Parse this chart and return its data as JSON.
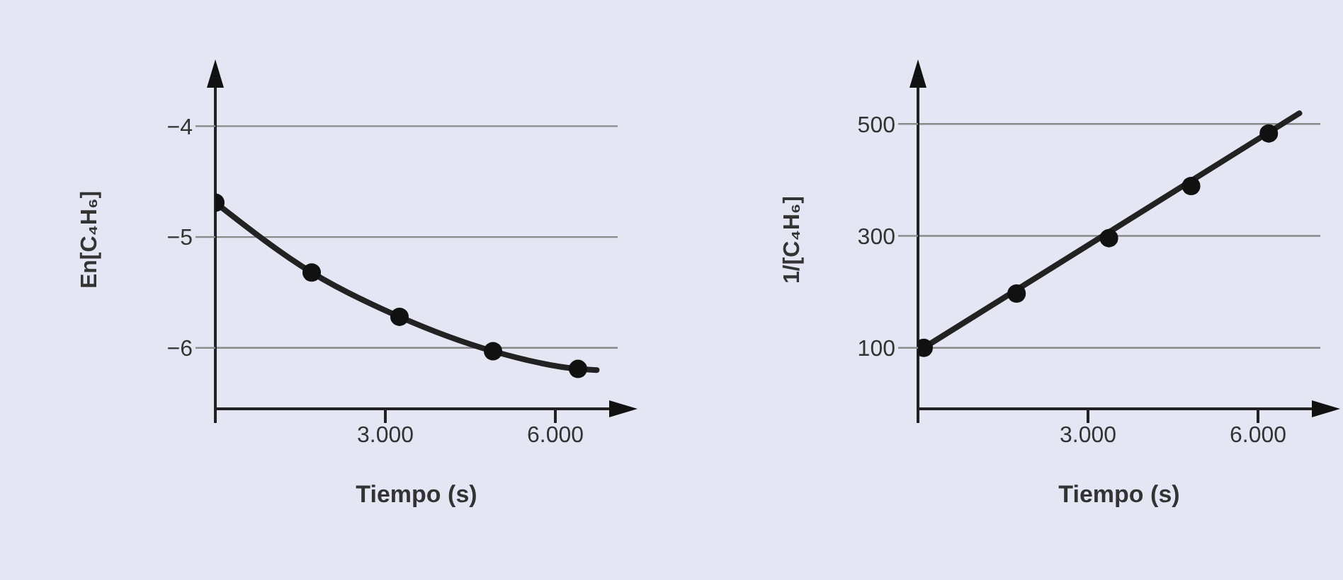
{
  "chart_data": [
    {
      "type": "line",
      "xlabel": "Tiempo (s)",
      "ylabel": "En[C₄H₆]",
      "xlim": [
        0,
        7100
      ],
      "xticks": [
        {
          "value": 0,
          "label": null
        },
        {
          "value": 3000,
          "label": "3.000"
        },
        {
          "value": 6000,
          "label": "6.000"
        }
      ],
      "ylim": [
        -6.55,
        -3.5
      ],
      "yticks": [
        {
          "value": -6,
          "label": "−6"
        },
        {
          "value": -5,
          "label": "−5"
        },
        {
          "value": -4,
          "label": "−4"
        }
      ],
      "grid": "y",
      "series": [
        {
          "type": "line",
          "color": "#222222",
          "marker": "none",
          "x": [
            0,
            1700,
            3250,
            4900,
            6400,
            6730
          ],
          "values": [
            -4.69,
            -5.32,
            -5.72,
            -6.03,
            -6.19,
            -6.2
          ]
        },
        {
          "type": "scatter",
          "color": "#111111",
          "marker": "circle",
          "x": [
            0,
            1700,
            3250,
            4900,
            6400
          ],
          "values": [
            -4.69,
            -5.32,
            -5.72,
            -6.03,
            -6.19
          ]
        }
      ]
    },
    {
      "type": "line",
      "xlabel": "Tiempo (s)",
      "ylabel": "1/[C₄H₆]",
      "xlim": [
        0,
        7100
      ],
      "xticks": [
        {
          "value": 0,
          "label": null
        },
        {
          "value": 3000,
          "label": "3.000"
        },
        {
          "value": 6000,
          "label": "6.000"
        }
      ],
      "ylim": [
        -9,
        595
      ],
      "yticks": [
        100,
        300,
        500
      ],
      "grid": "y",
      "series": [
        {
          "type": "line",
          "color": "#222222",
          "marker": "none",
          "x": [
            100,
            6730
          ],
          "values": [
            100,
            519
          ]
        },
        {
          "type": "scatter",
          "color": "#111111",
          "marker": "circle",
          "x": [
            100,
            1740,
            3370,
            4820,
            6190
          ],
          "values": [
            100,
            197,
            296,
            389,
            483
          ]
        }
      ]
    }
  ]
}
